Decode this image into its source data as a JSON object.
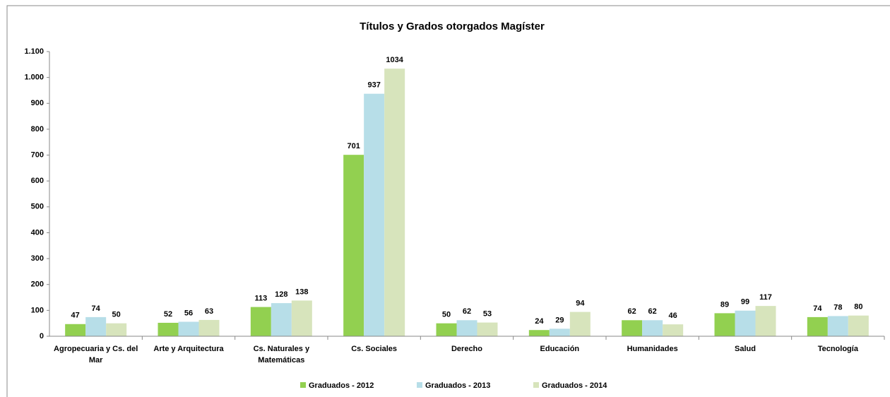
{
  "chart_data": {
    "type": "bar",
    "title": "Títulos y Grados otorgados Magíster",
    "categories": [
      "Agropecuaria y Cs. del Mar",
      "Arte y Arquitectura",
      "Cs. Naturales y Matemáticas",
      "Cs. Sociales",
      "Derecho",
      "Educación",
      "Humanidades",
      "Salud",
      "Tecnología"
    ],
    "series": [
      {
        "name": "Graduados - 2012",
        "color": "#92d050",
        "values": [
          47,
          52,
          113,
          701,
          50,
          24,
          62,
          89,
          74
        ]
      },
      {
        "name": "Graduados - 2013",
        "color": "#b7dee8",
        "values": [
          74,
          56,
          128,
          937,
          62,
          29,
          62,
          99,
          78
        ]
      },
      {
        "name": "Graduados - 2014",
        "color": "#d7e4bc",
        "values": [
          50,
          63,
          138,
          1034,
          53,
          94,
          46,
          117,
          80
        ]
      }
    ],
    "ylim": [
      0,
      1100
    ],
    "yticks": [
      0,
      100,
      200,
      300,
      400,
      500,
      600,
      700,
      800,
      900,
      {
        "value": 1000,
        "label": "1.000"
      },
      {
        "value": 1100,
        "label": "1.100"
      }
    ],
    "grid": false,
    "legend": "bottom"
  }
}
